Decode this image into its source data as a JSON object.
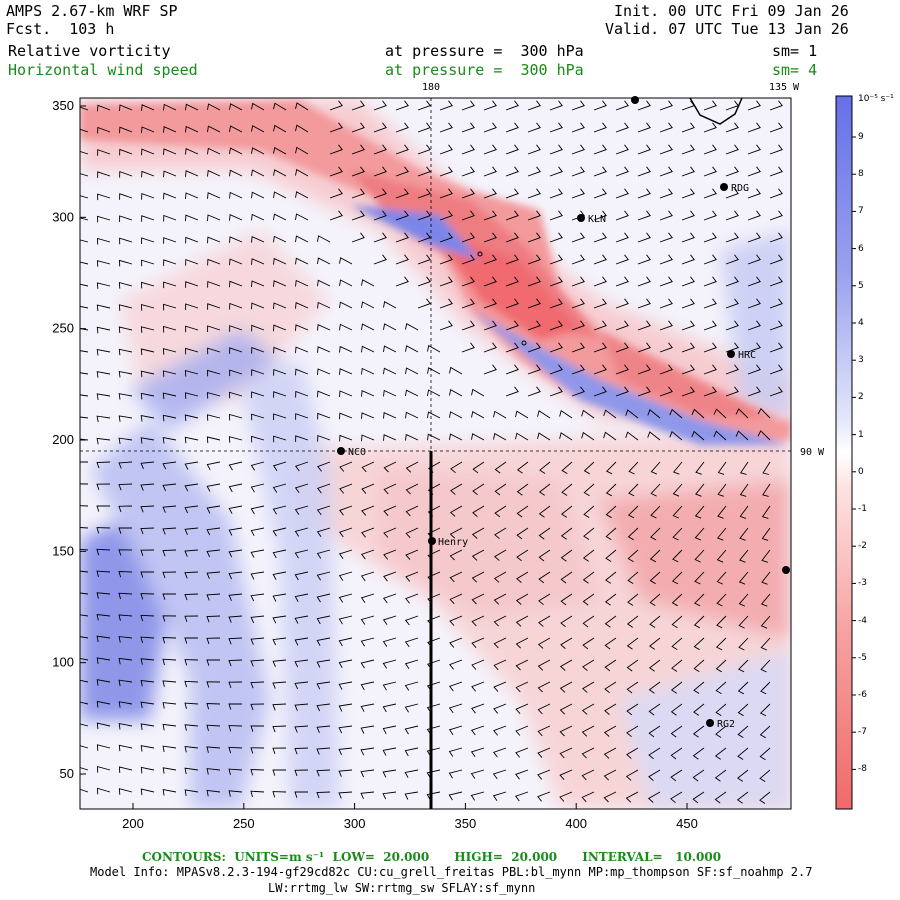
{
  "header": {
    "model_title": "AMPS 2.67-km WRF SP",
    "forecast": "Fcst.  103 h",
    "init": "Init. 00 UTC Fri 09 Jan 26",
    "valid": "Valid. 07 UTC Tue 13 Jan 26",
    "field1": {
      "name": "Relative vorticity",
      "level": "at pressure =  300 hPa",
      "smooth": "sm= 1"
    },
    "field2": {
      "name": "Horizontal wind speed",
      "level": "at pressure =  300 hPa",
      "smooth": "sm= 4"
    }
  },
  "map": {
    "x_ticks": [
      "200",
      "250",
      "300",
      "350",
      "400",
      "450"
    ],
    "y_ticks": [
      "50",
      "100",
      "150",
      "200",
      "250",
      "300",
      "350"
    ],
    "meridian_labels": {
      "dateline": "180",
      "m135": "135 W",
      "m90": "90 W"
    },
    "stations": [
      {
        "id": "RDG",
        "label": "RDG"
      },
      {
        "id": "KLN",
        "label": "KLN"
      },
      {
        "id": "HRC",
        "label": "HRC"
      },
      {
        "id": "NCO",
        "label": "NCO"
      },
      {
        "id": "Henry",
        "label": "Henry"
      },
      {
        "id": "RG2",
        "label": "RG2"
      }
    ]
  },
  "colorbar": {
    "unit": "10⁻⁵ s⁻¹",
    "labels": [
      "9",
      "8",
      "7",
      "6",
      "5",
      "4",
      "3",
      "2",
      "1",
      "0",
      "-1",
      "-2",
      "-3",
      "-4",
      "-5",
      "-6",
      "-7",
      "-8"
    ],
    "colors": {
      "max_pos": "#6670e8",
      "neutral": "#ffffff",
      "max_neg": "#f06a6a"
    }
  },
  "footer": {
    "contours": "CONTOURS:  UNITS=m s⁻¹  LOW=  20.000      HIGH=  20.000      INTERVAL=   10.000",
    "model_info": "Model Info: MPASv8.2.3-194-gf29cd82c CU:cu_grell_freitas PBL:bl_mynn MP:mp_thompson SF:sf_noahmp 2.7",
    "model_info2": "LW:rrtmg_lw SW:rrtmg_sw SFLAY:sf_mynn"
  }
}
